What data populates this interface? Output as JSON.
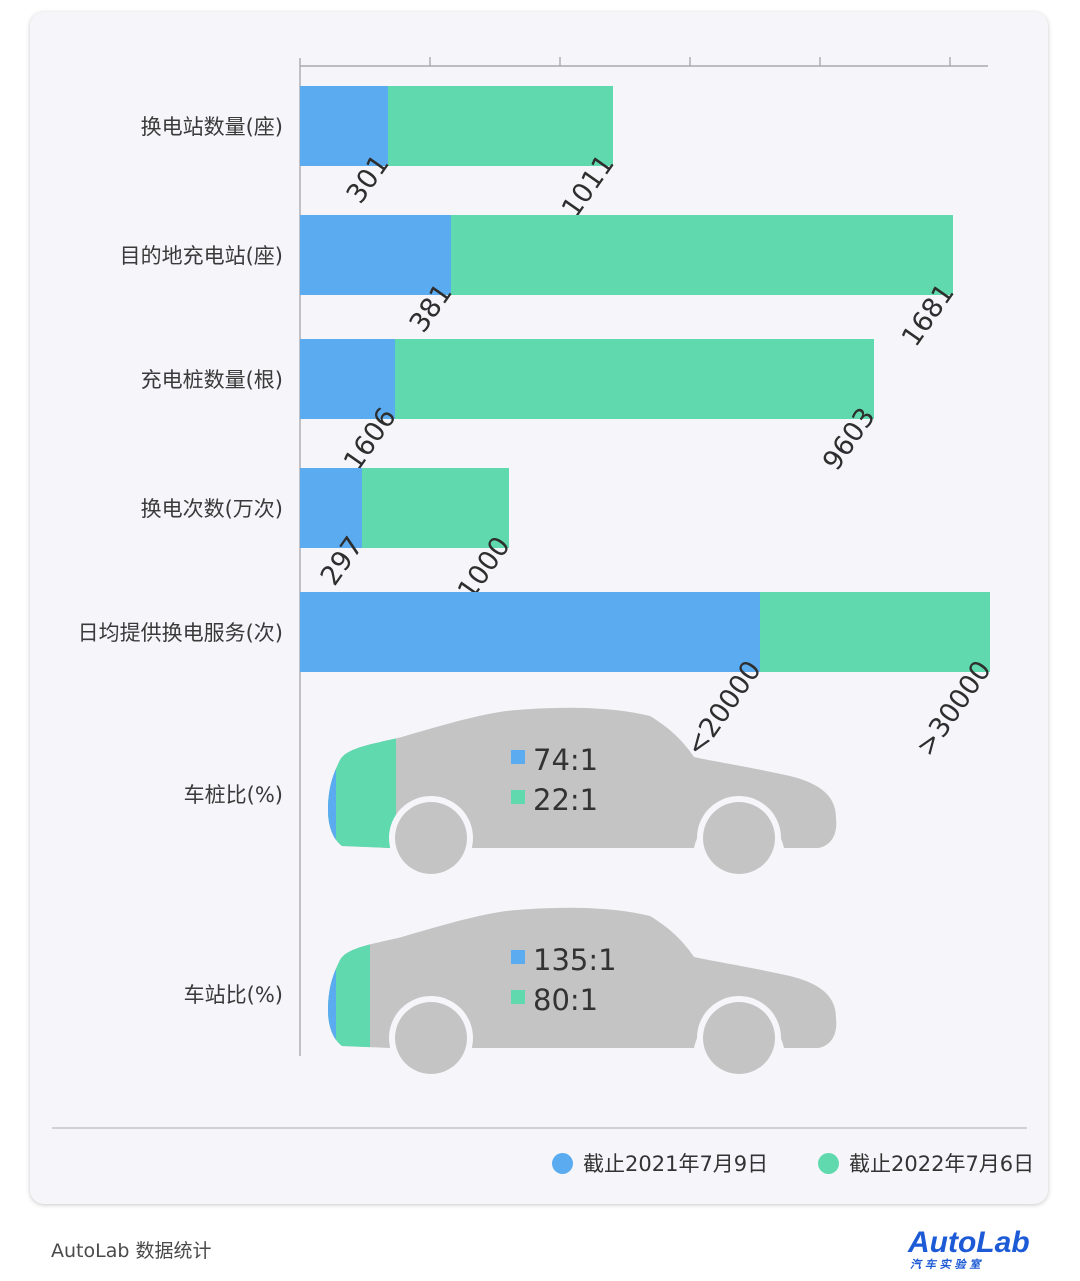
{
  "chart_data": {
    "type": "bar",
    "stacked": true,
    "categories": [
      "换电站数量(座)",
      "目的地充电站(座)",
      "充电桩数量(根)",
      "换电次数(万次)",
      "日均提供换电服务(次)"
    ],
    "series": [
      {
        "name": "截止2021年7月9日",
        "color": "#5aabf0",
        "labels": [
          "301",
          "381",
          "1606",
          "297",
          "<20000"
        ]
      },
      {
        "name": "截止2022年7月6日",
        "color": "#5fd9ad",
        "labels": [
          "1011",
          "1681",
          "9603",
          "1000",
          ">30000"
        ]
      }
    ],
    "ratio_rows": [
      {
        "label": "车桩比(%)",
        "legend": [
          {
            "text": "74:1",
            "series": 0
          },
          {
            "text": "22:1",
            "series": 1
          }
        ],
        "value_2021": 74,
        "value_2022": 22
      },
      {
        "label": "车站比(%)",
        "legend": [
          {
            "text": "135:1",
            "series": 0
          },
          {
            "text": "80:1",
            "series": 1
          }
        ],
        "value_2021": 135,
        "value_2022": 80
      }
    ],
    "legend_position": "bottom-right",
    "grid": false
  },
  "footer": {
    "source": "AutoLab 数据统计",
    "logo_text": "AutoLab",
    "logo_sub": "汽 车 实 验 室"
  },
  "colors": {
    "blue": "#5aabf0",
    "green": "#5fd9ad",
    "car": "#c4c4c4",
    "axis": "#a9a9b0"
  }
}
